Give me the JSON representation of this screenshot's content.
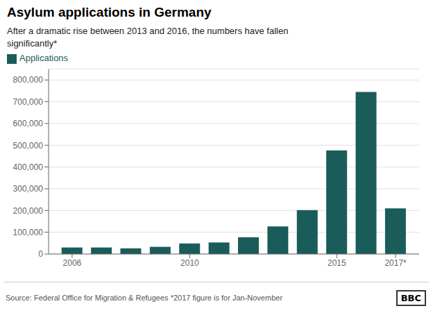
{
  "chart_data": {
    "type": "bar",
    "title": "Asylum applications in Germany",
    "subtitle": "After a dramatic rise between 2013 and 2016, the numbers have fallen\nsignificantly*",
    "x": [
      2006,
      2007,
      2008,
      2009,
      2010,
      2011,
      2012,
      2013,
      2014,
      2015,
      2016,
      2017
    ],
    "series": [
      {
        "name": "Applications",
        "color": "#1a5c5a",
        "values": [
          30000,
          30000,
          26000,
          33000,
          48500,
          53000,
          77000,
          127000,
          202000,
          476000,
          745000,
          210000
        ]
      }
    ],
    "xlim": [
      2005.2,
      2017.8
    ],
    "xticks": [
      {
        "value": 2006,
        "label": "2006"
      },
      {
        "value": 2010,
        "label": "2010"
      },
      {
        "value": 2015,
        "label": "2015"
      },
      {
        "value": 2017,
        "label": "2017*"
      }
    ],
    "ylim": [
      0,
      850000
    ],
    "yticks": [
      0,
      {
        "value": 100000,
        "label": "100,000"
      },
      {
        "value": 200000,
        "label": "200,000"
      },
      {
        "value": 300000,
        "label": "300,000"
      },
      {
        "value": 400000,
        "label": "400,000"
      },
      {
        "value": 500000,
        "label": "500,000"
      },
      {
        "value": 600000,
        "label": "600,000"
      },
      {
        "value": 700000,
        "label": "700,000"
      },
      {
        "value": 800000,
        "label": "800,000"
      }
    ],
    "grid": true,
    "legend": "top-left",
    "annotations": [
      "Source: Federal Office for Migration & Refugees *2017 figure is for Jan-November",
      "BBC"
    ]
  }
}
